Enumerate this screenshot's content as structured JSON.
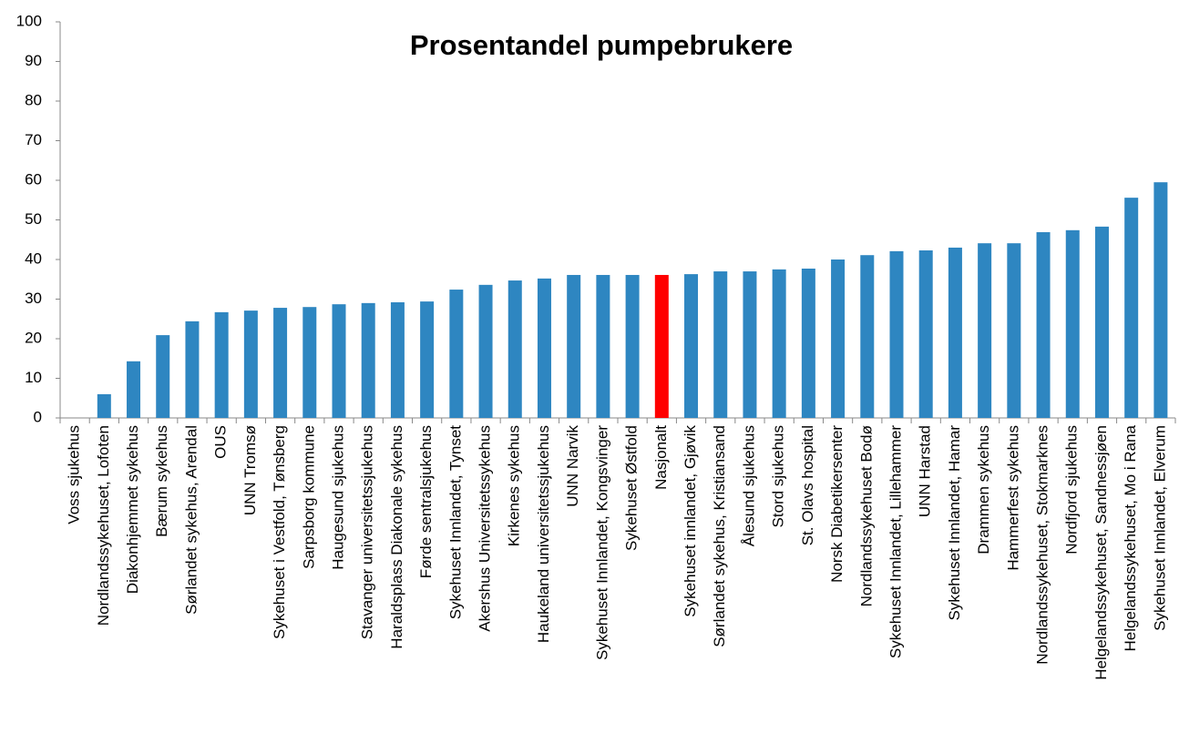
{
  "chart_data": {
    "type": "bar",
    "title": "Prosentandel pumpebrukere",
    "categories": [
      "Voss sjukehus",
      "Nordlandssykehuset, Lofoten",
      "Diakonhjemmet sykehus",
      "Bærum sykehus",
      "Sørlandet sykehus, Arendal",
      "OUS",
      "UNN Tromsø",
      "Sykehuset i Vestfold, Tønsberg",
      "Sarpsborg kommune",
      "Haugesund sjukehus",
      "Stavanger universitetssjukehus",
      "Haraldsplass Diakonale sykehus",
      "Førde sentralsjukehus",
      "Sykehuset Innlandet, Tynset",
      "Akershus Universitetssykehus",
      "Kirkenes sykehus",
      "Haukeland universitetssjukehus",
      "UNN Narvik",
      "Sykehuset Innlandet, Kongsvinger",
      "Sykehuset Østfold",
      "Nasjonalt",
      "Sykehuset innlandet, Gjøvik",
      "Sørlandet sykehus, Kristiansand",
      "Ålesund sjukehus",
      "Stord sjukehus",
      "St. Olavs hospital",
      "Norsk Diabetikersenter",
      "Nordlandssykehuset Bodø",
      "Sykehuset Innlandet, Lillehammer",
      "UNN Harstad",
      "Sykehuset Innlandet, Hamar",
      "Drammen sykehus",
      "Hammerfest sykehus",
      "Nordlandssykehuset, Stokmarknes",
      "Nordfjord sjukehus",
      "Helgelandssykehuset, Sandnessjøen",
      "Helgelandssykehuset, Mo i Rana",
      "Sykehuset Innlandet, Elverum"
    ],
    "values": [
      0,
      6.0,
      14.3,
      20.9,
      24.4,
      26.7,
      27.1,
      27.8,
      28.0,
      28.7,
      29.0,
      29.2,
      29.4,
      32.4,
      33.6,
      34.7,
      35.2,
      36.1,
      36.1,
      36.1,
      36.1,
      36.3,
      37.0,
      37.0,
      37.5,
      37.7,
      40.0,
      41.1,
      42.1,
      42.3,
      43.0,
      44.1,
      44.1,
      46.9,
      47.4,
      48.3,
      55.6,
      59.5
    ],
    "colors": [
      "#2e86c1",
      "#2e86c1",
      "#2e86c1",
      "#2e86c1",
      "#2e86c1",
      "#2e86c1",
      "#2e86c1",
      "#2e86c1",
      "#2e86c1",
      "#2e86c1",
      "#2e86c1",
      "#2e86c1",
      "#2e86c1",
      "#2e86c1",
      "#2e86c1",
      "#2e86c1",
      "#2e86c1",
      "#2e86c1",
      "#2e86c1",
      "#2e86c1",
      "#ff0000",
      "#2e86c1",
      "#2e86c1",
      "#2e86c1",
      "#2e86c1",
      "#2e86c1",
      "#2e86c1",
      "#2e86c1",
      "#2e86c1",
      "#2e86c1",
      "#2e86c1",
      "#2e86c1",
      "#2e86c1",
      "#2e86c1",
      "#2e86c1",
      "#2e86c1",
      "#2e86c1",
      "#2e86c1"
    ],
    "ylim": [
      0,
      100
    ],
    "yticks": [
      0,
      10,
      20,
      30,
      40,
      50,
      60,
      70,
      80,
      90,
      100
    ],
    "grid": false
  }
}
